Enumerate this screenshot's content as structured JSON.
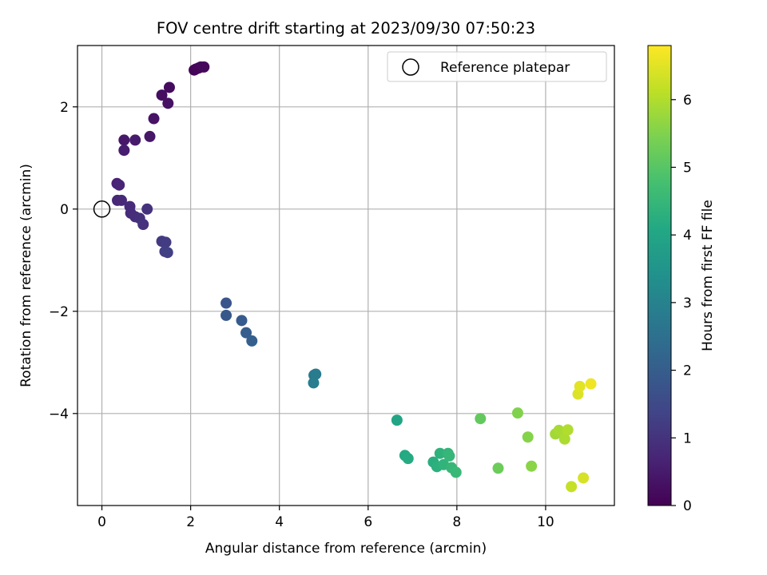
{
  "chart_data": {
    "type": "scatter",
    "title": "FOV centre drift starting at 2023/09/30 07:50:23",
    "xlabel": "Angular distance from reference (arcmin)",
    "ylabel": "Rotation from reference (arcmin)",
    "xlim": [
      -0.55,
      11.55
    ],
    "ylim": [
      -5.8,
      3.2
    ],
    "xticks": [
      0,
      2,
      4,
      6,
      8,
      10
    ],
    "yticks": [
      -4,
      -2,
      0,
      2
    ],
    "xtick_labels": [
      "0",
      "2",
      "4",
      "6",
      "8",
      "10"
    ],
    "ytick_labels": [
      "−4",
      "−2",
      "0",
      "2"
    ],
    "grid": true,
    "legend": {
      "placement": "top-right",
      "entries": [
        "Reference platepar"
      ]
    },
    "reference_point": {
      "x": 0,
      "y": 0
    },
    "colorbar": {
      "label": "Hours from first FF file",
      "colormap": "viridis",
      "range": [
        0,
        6.8
      ],
      "ticks": [
        0,
        1,
        2,
        3,
        4,
        5,
        6
      ],
      "tick_labels": [
        "0",
        "1",
        "2",
        "3",
        "4",
        "5",
        "6"
      ]
    },
    "series": [
      {
        "points": [
          {
            "x": 2.08,
            "y": 2.72,
            "c": 0.05
          },
          {
            "x": 2.12,
            "y": 2.74,
            "c": 0.08
          },
          {
            "x": 2.18,
            "y": 2.76,
            "c": 0.1
          },
          {
            "x": 2.23,
            "y": 2.78,
            "c": 0.12
          },
          {
            "x": 2.3,
            "y": 2.78,
            "c": 0.14
          },
          {
            "x": 1.52,
            "y": 2.38,
            "c": 0.2
          },
          {
            "x": 1.35,
            "y": 2.23,
            "c": 0.25
          },
          {
            "x": 1.49,
            "y": 2.07,
            "c": 0.3
          },
          {
            "x": 1.17,
            "y": 1.77,
            "c": 0.35
          },
          {
            "x": 1.08,
            "y": 1.42,
            "c": 0.4
          },
          {
            "x": 0.5,
            "y": 1.35,
            "c": 0.45
          },
          {
            "x": 0.75,
            "y": 1.35,
            "c": 0.5
          },
          {
            "x": 0.5,
            "y": 1.15,
            "c": 0.55
          },
          {
            "x": 0.34,
            "y": 0.5,
            "c": 0.65
          },
          {
            "x": 0.39,
            "y": 0.47,
            "c": 0.7
          },
          {
            "x": 0.35,
            "y": 0.17,
            "c": 0.75
          },
          {
            "x": 0.44,
            "y": 0.17,
            "c": 0.78
          },
          {
            "x": 0.63,
            "y": 0.05,
            "c": 0.82
          },
          {
            "x": 0.65,
            "y": -0.08,
            "c": 0.86
          },
          {
            "x": 0.75,
            "y": -0.15,
            "c": 0.9
          },
          {
            "x": 0.85,
            "y": -0.18,
            "c": 0.94
          },
          {
            "x": 1.02,
            "y": 0.0,
            "c": 0.98
          },
          {
            "x": 0.93,
            "y": -0.3,
            "c": 1.0
          },
          {
            "x": 1.35,
            "y": -0.63,
            "c": 1.15
          },
          {
            "x": 1.44,
            "y": -0.65,
            "c": 1.2
          },
          {
            "x": 1.42,
            "y": -0.83,
            "c": 1.25
          },
          {
            "x": 1.48,
            "y": -0.85,
            "c": 1.28
          },
          {
            "x": 2.8,
            "y": -1.84,
            "c": 1.8
          },
          {
            "x": 2.8,
            "y": -2.08,
            "c": 1.85
          },
          {
            "x": 3.15,
            "y": -2.18,
            "c": 1.95
          },
          {
            "x": 3.25,
            "y": -2.42,
            "c": 2.0
          },
          {
            "x": 3.38,
            "y": -2.58,
            "c": 2.05
          },
          {
            "x": 4.78,
            "y": -3.25,
            "c": 2.75
          },
          {
            "x": 4.82,
            "y": -3.23,
            "c": 2.8
          },
          {
            "x": 4.77,
            "y": -3.4,
            "c": 2.85
          },
          {
            "x": 6.65,
            "y": -4.13,
            "c": 4.0
          },
          {
            "x": 6.83,
            "y": -4.82,
            "c": 4.1
          },
          {
            "x": 6.9,
            "y": -4.88,
            "c": 4.15
          },
          {
            "x": 7.47,
            "y": -4.95,
            "c": 4.25
          },
          {
            "x": 7.55,
            "y": -5.04,
            "c": 4.3
          },
          {
            "x": 7.62,
            "y": -4.78,
            "c": 4.35
          },
          {
            "x": 7.7,
            "y": -5.0,
            "c": 4.4
          },
          {
            "x": 7.8,
            "y": -4.78,
            "c": 4.45
          },
          {
            "x": 7.83,
            "y": -4.83,
            "c": 4.48
          },
          {
            "x": 7.88,
            "y": -5.06,
            "c": 4.5
          },
          {
            "x": 7.98,
            "y": -5.15,
            "c": 4.55
          },
          {
            "x": 8.53,
            "y": -4.1,
            "c": 5.15
          },
          {
            "x": 8.93,
            "y": -5.07,
            "c": 5.25
          },
          {
            "x": 9.37,
            "y": -3.99,
            "c": 5.5
          },
          {
            "x": 9.6,
            "y": -4.46,
            "c": 5.55
          },
          {
            "x": 9.68,
            "y": -5.03,
            "c": 5.6
          },
          {
            "x": 10.22,
            "y": -4.4,
            "c": 5.85
          },
          {
            "x": 10.3,
            "y": -4.33,
            "c": 5.9
          },
          {
            "x": 10.43,
            "y": -4.5,
            "c": 5.95
          },
          {
            "x": 10.5,
            "y": -4.32,
            "c": 6.0
          },
          {
            "x": 10.58,
            "y": -5.43,
            "c": 6.2
          },
          {
            "x": 10.73,
            "y": -3.62,
            "c": 6.45
          },
          {
            "x": 10.77,
            "y": -3.47,
            "c": 6.5
          },
          {
            "x": 10.85,
            "y": -5.26,
            "c": 6.4
          },
          {
            "x": 11.02,
            "y": -3.42,
            "c": 6.65
          }
        ]
      }
    ]
  }
}
